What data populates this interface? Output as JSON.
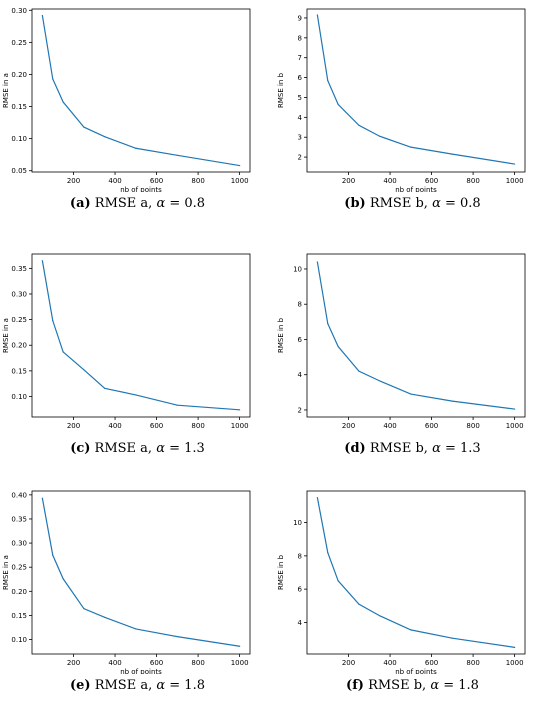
{
  "style": {
    "line_color": "#1f77b4",
    "axis_color": "#000000"
  },
  "chart_data": [
    {
      "type": "line",
      "panel": "a",
      "panel_label": "(a)",
      "caption_text": "RMSE a, ",
      "alpha_symbol": "α",
      "alpha_value": "= 0.8",
      "xlabel": "nb of points",
      "ylabel": "RMSE in a",
      "xlim": [
        0,
        1050
      ],
      "ylim": [
        0.048,
        0.302
      ],
      "xticks": [
        200,
        400,
        600,
        800,
        1000
      ],
      "yticks": [
        0.05,
        0.1,
        0.15,
        0.2,
        0.25,
        0.3
      ],
      "ytick_labels": [
        "0.05",
        "0.10",
        "0.15",
        "0.20",
        "0.25",
        "0.30"
      ],
      "x": [
        50,
        100,
        150,
        250,
        350,
        500,
        700,
        1000
      ],
      "y": [
        0.292,
        0.193,
        0.157,
        0.118,
        0.103,
        0.085,
        0.074,
        0.058
      ]
    },
    {
      "type": "line",
      "panel": "b",
      "panel_label": "(b)",
      "caption_text": "RMSE b, ",
      "alpha_symbol": "α",
      "alpha_value": "= 0.8",
      "xlabel": "nb of points",
      "ylabel": "RMSE in b",
      "xlim": [
        0,
        1050
      ],
      "ylim": [
        1.25,
        9.45
      ],
      "xticks": [
        200,
        400,
        600,
        800,
        1000
      ],
      "yticks": [
        2,
        3,
        4,
        5,
        6,
        7,
        8,
        9
      ],
      "ytick_labels": [
        "2",
        "3",
        "4",
        "5",
        "6",
        "7",
        "8",
        "9"
      ],
      "x": [
        50,
        100,
        150,
        250,
        350,
        500,
        700,
        1000
      ],
      "y": [
        9.15,
        5.85,
        4.65,
        3.6,
        3.05,
        2.5,
        2.15,
        1.65
      ]
    },
    {
      "type": "line",
      "panel": "c",
      "panel_label": "(c)",
      "caption_text": "RMSE a, ",
      "alpha_symbol": "α",
      "alpha_value": "= 1.3",
      "xlabel": "",
      "ylabel": "RMSE in a",
      "xlim": [
        0,
        1050
      ],
      "ylim": [
        0.06,
        0.378
      ],
      "xticks": [
        200,
        400,
        600,
        800,
        1000
      ],
      "yticks": [
        0.1,
        0.15,
        0.2,
        0.25,
        0.3,
        0.35
      ],
      "ytick_labels": [
        "0.10",
        "0.15",
        "0.20",
        "0.25",
        "0.30",
        "0.35"
      ],
      "x": [
        50,
        100,
        150,
        250,
        350,
        500,
        700,
        1000
      ],
      "y": [
        0.365,
        0.248,
        0.187,
        0.152,
        0.116,
        0.103,
        0.083,
        0.074
      ]
    },
    {
      "type": "line",
      "panel": "d",
      "panel_label": "(d)",
      "caption_text": "RMSE b, ",
      "alpha_symbol": "α",
      "alpha_value": "= 1.3",
      "xlabel": "",
      "ylabel": "RMSE in b",
      "xlim": [
        0,
        1050
      ],
      "ylim": [
        1.6,
        10.85
      ],
      "xticks": [
        200,
        400,
        600,
        800,
        1000
      ],
      "yticks": [
        2,
        4,
        6,
        8,
        10
      ],
      "ytick_labels": [
        "2",
        "4",
        "6",
        "8",
        "10"
      ],
      "x": [
        50,
        100,
        150,
        250,
        350,
        500,
        700,
        1000
      ],
      "y": [
        10.4,
        6.9,
        5.6,
        4.2,
        3.65,
        2.9,
        2.5,
        2.05
      ]
    },
    {
      "type": "line",
      "panel": "e",
      "panel_label": "(e)",
      "caption_text": "RMSE a, ",
      "alpha_symbol": "α",
      "alpha_value": "= 1.8",
      "xlabel": "nb of points",
      "ylabel": "RMSE in a",
      "xlim": [
        0,
        1050
      ],
      "ylim": [
        0.07,
        0.408
      ],
      "xticks": [
        200,
        400,
        600,
        800,
        1000
      ],
      "yticks": [
        0.1,
        0.15,
        0.2,
        0.25,
        0.3,
        0.35,
        0.4
      ],
      "ytick_labels": [
        "0.10",
        "0.15",
        "0.20",
        "0.25",
        "0.30",
        "0.35",
        "0.40"
      ],
      "x": [
        50,
        100,
        150,
        250,
        350,
        500,
        700,
        1000
      ],
      "y": [
        0.393,
        0.275,
        0.226,
        0.164,
        0.146,
        0.122,
        0.106,
        0.086
      ]
    },
    {
      "type": "line",
      "panel": "f",
      "panel_label": "(f)",
      "caption_text": "RMSE b, ",
      "alpha_symbol": "α",
      "alpha_value": "= 1.8",
      "xlabel": "nb of points",
      "ylabel": "RMSE in b",
      "xlim": [
        0,
        1050
      ],
      "ylim": [
        2.1,
        11.9
      ],
      "xticks": [
        200,
        400,
        600,
        800,
        1000
      ],
      "yticks": [
        4,
        6,
        8,
        10
      ],
      "ytick_labels": [
        "4",
        "6",
        "8",
        "10"
      ],
      "x": [
        50,
        100,
        150,
        250,
        350,
        500,
        700,
        1000
      ],
      "y": [
        11.5,
        8.2,
        6.5,
        5.1,
        4.4,
        3.55,
        3.05,
        2.5
      ]
    }
  ]
}
